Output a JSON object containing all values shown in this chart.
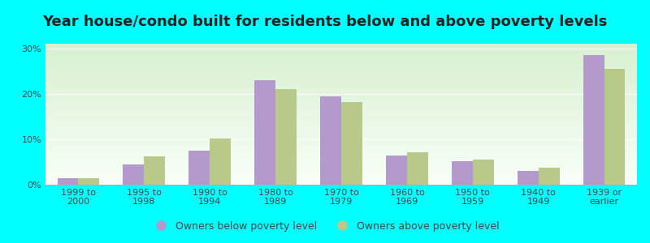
{
  "title": "Year house/condo built for residents below and above poverty levels",
  "categories": [
    "1999 to\n2000",
    "1995 to\n1998",
    "1990 to\n1994",
    "1980 to\n1989",
    "1970 to\n1979",
    "1960 to\n1969",
    "1950 to\n1959",
    "1940 to\n1949",
    "1939 or\nearlier"
  ],
  "below_poverty": [
    1.5,
    4.5,
    7.5,
    23.0,
    19.5,
    6.5,
    5.2,
    3.0,
    28.5
  ],
  "above_poverty": [
    1.5,
    6.2,
    10.2,
    21.0,
    18.2,
    7.2,
    5.5,
    3.8,
    25.5
  ],
  "below_color": "#b399cc",
  "above_color": "#b8c98a",
  "background_color": "#00ffff",
  "plot_bg_top": "#d8f0d0",
  "plot_bg_bottom": "#f8fff8",
  "ylabel_ticks": [
    "0%",
    "10%",
    "20%",
    "30%"
  ],
  "yticks": [
    0,
    10,
    20,
    30
  ],
  "ylim": [
    0,
    31
  ],
  "bar_width": 0.32,
  "legend_below_label": "Owners below poverty level",
  "legend_above_label": "Owners above poverty level",
  "title_fontsize": 13,
  "tick_fontsize": 8,
  "legend_fontsize": 9
}
